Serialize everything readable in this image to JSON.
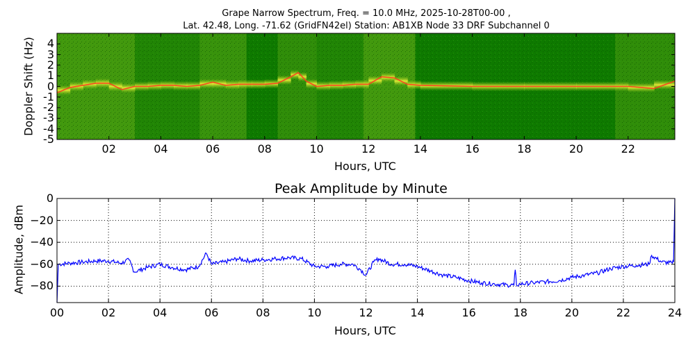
{
  "spectrogram": {
    "title_line1": "Grape Narrow Spectrum, Freq. = 10.0 MHz, 2025-10-28T00-00 ,",
    "title_line2": "Lat.  42.48, Long. -71.62 (GridFN42el) Station: AB1XB Node 33 DRF Subchannel 0",
    "ylabel": "Doppler Shift (Hz)",
    "xlabel": "Hours, UTC"
  },
  "amplitude": {
    "title": "Peak Amplitude by Minute",
    "ylabel": "Amplitude, dBm",
    "xlabel": "Hours, UTC"
  },
  "colors": {
    "line": "#0000ff",
    "spec_background": "#0e7a00",
    "spec_mid": "#8fc81b",
    "spec_high": "#f5f03a",
    "spec_peak": "#ff3c1e"
  },
  "chart_data": [
    {
      "type": "heatmap",
      "title": "Grape Narrow Spectrum, Freq. = 10.0 MHz, 2025-10-28T00-00 , Lat.  42.48, Long. -71.62 (GridFN42el) Station: AB1XB Node 33 DRF Subchannel 0",
      "xlabel": "Hours, UTC",
      "ylabel": "Doppler Shift (Hz)",
      "xlim": [
        0,
        23.8
      ],
      "ylim": [
        -5,
        5
      ],
      "x_ticks": [
        2,
        4,
        6,
        8,
        10,
        12,
        14,
        16,
        18,
        20,
        22
      ],
      "x_tick_labels": [
        "02",
        "04",
        "06",
        "08",
        "10",
        "12",
        "14",
        "16",
        "18",
        "20",
        "22"
      ],
      "y_ticks": [
        4,
        3,
        2,
        1,
        0,
        -1,
        -2,
        -3,
        -4,
        -5
      ],
      "y_tick_labels": [
        "4",
        "3",
        "2",
        "1",
        "0",
        "-1",
        "-2",
        "-3",
        "-4",
        "-5"
      ],
      "peak_doppler_trace": {
        "hours": [
          0.0,
          0.5,
          1.0,
          1.5,
          2.0,
          2.5,
          3.0,
          3.5,
          4.0,
          4.5,
          5.0,
          5.5,
          6.0,
          6.5,
          7.0,
          7.5,
          8.0,
          8.5,
          9.0,
          9.3,
          9.6,
          10.0,
          10.5,
          11.0,
          11.5,
          12.0,
          12.5,
          13.0,
          13.5,
          14.0,
          16.0,
          18.0,
          20.0,
          22.0,
          23.0,
          23.8
        ],
        "doppler_hz": [
          -0.6,
          -0.1,
          0.1,
          0.3,
          0.3,
          -0.3,
          0.0,
          0.0,
          0.1,
          0.1,
          0.0,
          0.1,
          0.4,
          0.1,
          0.2,
          0.2,
          0.2,
          0.3,
          0.9,
          1.3,
          0.5,
          0.0,
          0.1,
          0.1,
          0.2,
          0.2,
          0.9,
          0.8,
          0.2,
          0.1,
          0.0,
          0.0,
          0.0,
          0.0,
          -0.2,
          0.5
        ]
      }
    },
    {
      "type": "line",
      "title": "Peak Amplitude by Minute",
      "xlabel": "Hours, UTC",
      "ylabel": "Amplitude, dBm",
      "xlim": [
        0,
        24
      ],
      "ylim": [
        -95,
        0
      ],
      "grid": true,
      "x_ticks": [
        0,
        2,
        4,
        6,
        8,
        10,
        12,
        14,
        16,
        18,
        20,
        22,
        24
      ],
      "x_tick_labels": [
        "00",
        "02",
        "04",
        "06",
        "08",
        "10",
        "12",
        "14",
        "16",
        "18",
        "20",
        "22",
        "24"
      ],
      "y_ticks": [
        0,
        -20,
        -40,
        -60,
        -80
      ],
      "y_tick_labels": [
        "0",
        "−20",
        "−40",
        "−60",
        "−80"
      ],
      "x": [
        0.0,
        0.05,
        0.5,
        1.0,
        1.5,
        2.0,
        2.5,
        2.8,
        3.0,
        3.5,
        4.0,
        4.5,
        5.0,
        5.5,
        5.8,
        6.0,
        6.5,
        7.0,
        7.5,
        8.0,
        8.5,
        9.0,
        9.5,
        10.0,
        10.5,
        11.0,
        11.5,
        11.8,
        12.0,
        12.3,
        12.5,
        13.0,
        13.5,
        14.0,
        14.5,
        15.0,
        15.5,
        16.0,
        16.5,
        17.0,
        17.5,
        17.75,
        17.8,
        17.85,
        18.0,
        18.5,
        19.0,
        19.5,
        20.0,
        20.5,
        21.0,
        21.5,
        22.0,
        22.5,
        23.0,
        23.1,
        23.5,
        23.9,
        23.95,
        24.0
      ],
      "y": [
        -95,
        -60,
        -59,
        -58,
        -57,
        -57,
        -59,
        -56,
        -67,
        -63,
        -60,
        -63,
        -65,
        -62,
        -50,
        -60,
        -58,
        -55,
        -57,
        -56,
        -55,
        -54,
        -55,
        -62,
        -62,
        -60,
        -60,
        -65,
        -70,
        -58,
        -55,
        -60,
        -60,
        -62,
        -66,
        -70,
        -72,
        -75,
        -77,
        -78,
        -79,
        -79,
        -65,
        -79,
        -78,
        -77,
        -76,
        -75,
        -72,
        -70,
        -68,
        -64,
        -62,
        -61,
        -60,
        -52,
        -58,
        -59,
        -58,
        0
      ]
    }
  ]
}
